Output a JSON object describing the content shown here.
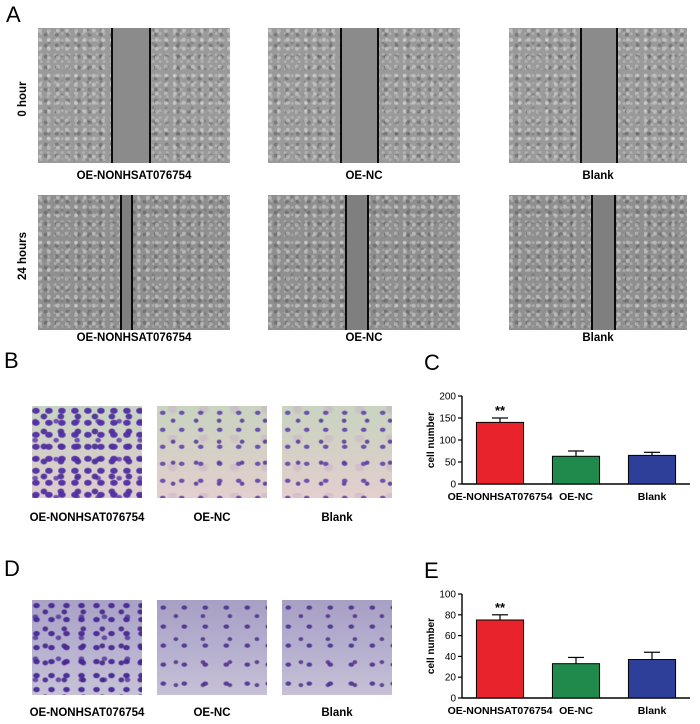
{
  "panels": {
    "A": {
      "letter": "A",
      "row_labels": [
        "0 hour",
        "24 hours"
      ],
      "captions": [
        "OE-NONHSAT076754",
        "OE-NC",
        "Blank"
      ]
    },
    "B": {
      "letter": "B",
      "captions": [
        "OE-NONHSAT076754",
        "OE-NC",
        "Blank"
      ]
    },
    "C": {
      "letter": "C"
    },
    "D": {
      "letter": "D",
      "captions": [
        "OE-NONHSAT076754",
        "OE-NC",
        "Blank"
      ]
    },
    "E": {
      "letter": "E"
    }
  },
  "colors": {
    "red": "#e8232b",
    "green": "#1f8a4c",
    "blue": "#2e3f9a"
  },
  "chart_data": [
    {
      "panel": "C",
      "type": "bar",
      "categories": [
        "OE-NONHSAT076754",
        "OE-NC",
        "Blank"
      ],
      "values": [
        140,
        63,
        65
      ],
      "errors": [
        10,
        12,
        7
      ],
      "colors": [
        "#e8232b",
        "#1f8a4c",
        "#2e3f9a"
      ],
      "annotations": [
        "**",
        "",
        ""
      ],
      "ylabel": "cell number",
      "ylim": [
        0,
        200
      ],
      "yticks": [
        0,
        50,
        100,
        150,
        200
      ]
    },
    {
      "panel": "E",
      "type": "bar",
      "categories": [
        "OE-NONHSAT076754",
        "OE-NC",
        "Blank"
      ],
      "values": [
        75,
        33,
        37
      ],
      "errors": [
        5,
        6,
        7
      ],
      "colors": [
        "#e8232b",
        "#1f8a4c",
        "#2e3f9a"
      ],
      "annotations": [
        "**",
        "",
        ""
      ],
      "ylabel": "cell number",
      "ylim": [
        0,
        100
      ],
      "yticks": [
        0,
        20,
        40,
        60,
        80,
        100
      ]
    }
  ]
}
